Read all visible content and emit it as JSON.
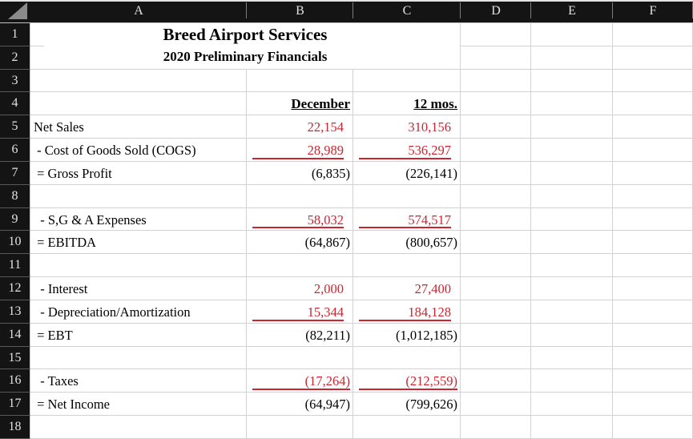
{
  "sheet": {
    "title": "Breed Airport Services",
    "subtitle": "2020 Preliminary Financials",
    "columns": [
      "A",
      "B",
      "C",
      "D",
      "E",
      "F"
    ],
    "rows": [
      "1",
      "2",
      "3",
      "4",
      "5",
      "6",
      "7",
      "8",
      "9",
      "10",
      "11",
      "12",
      "13",
      "14",
      "15",
      "16",
      "17",
      "18"
    ],
    "colors": {
      "negative_red": "#cd2530",
      "text_black": "#000000",
      "header_bg": "#141414",
      "header_text": "#e2e2e2",
      "gridline": "#d2d2d2"
    },
    "statement": {
      "column_headers": [
        {
          "col": "B",
          "label": "December"
        },
        {
          "col": "C",
          "label": "12 mos."
        }
      ],
      "line_items": [
        {
          "row": "5",
          "label": "Net Sales",
          "december": "22,154",
          "twelve_mos": "310,156",
          "value_color": "red",
          "red_underline": false
        },
        {
          "row": "6",
          "label": " - Cost of Goods Sold (COGS)",
          "december": "28,989",
          "twelve_mos": "536,297",
          "value_color": "red",
          "red_underline": true
        },
        {
          "row": "7",
          "label": " = Gross Profit",
          "december": "(6,835)",
          "twelve_mos": "(226,141)",
          "value_color": "black",
          "red_underline": false
        },
        {
          "row": "9",
          "label": "  - S,G & A Expenses",
          "december": "58,032",
          "twelve_mos": "574,517",
          "value_color": "red",
          "red_underline": true
        },
        {
          "row": "10",
          "label": " = EBITDA",
          "december": "(64,867)",
          "twelve_mos": "(800,657)",
          "value_color": "black",
          "red_underline": false
        },
        {
          "row": "12",
          "label": "  - Interest",
          "december": "2,000",
          "twelve_mos": "27,400",
          "value_color": "red",
          "red_underline": false
        },
        {
          "row": "13",
          "label": "  - Depreciation/Amortization",
          "december": "15,344",
          "twelve_mos": "184,128",
          "value_color": "red",
          "red_underline": true
        },
        {
          "row": "14",
          "label": " = EBT",
          "december": "(82,211)",
          "twelve_mos": "(1,012,185)",
          "value_color": "black",
          "red_underline": false
        },
        {
          "row": "16",
          "label": "  - Taxes",
          "december": "(17,264)",
          "twelve_mos": "(212,559)",
          "value_color": "red",
          "red_underline": true
        },
        {
          "row": "17",
          "label": " = Net Income",
          "december": "(64,947)",
          "twelve_mos": "(799,626)",
          "value_color": "black",
          "red_underline": false
        }
      ]
    }
  }
}
